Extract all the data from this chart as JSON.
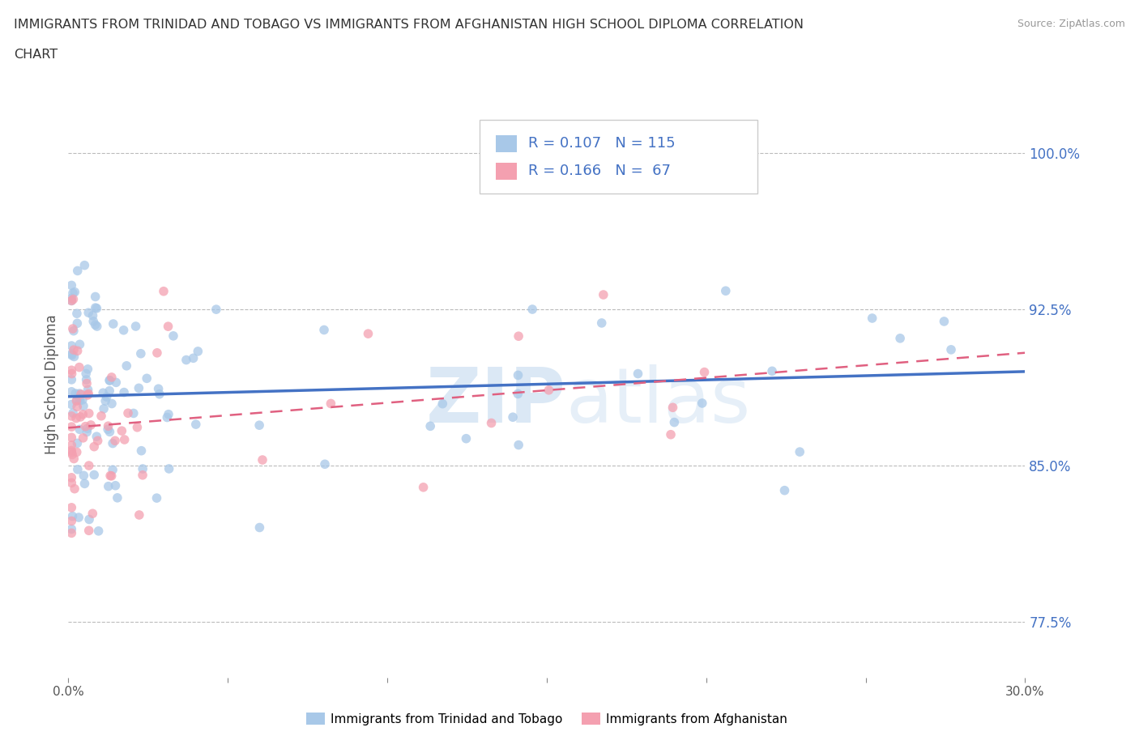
{
  "title_line1": "IMMIGRANTS FROM TRINIDAD AND TOBAGO VS IMMIGRANTS FROM AFGHANISTAN HIGH SCHOOL DIPLOMA CORRELATION",
  "title_line2": "CHART",
  "source": "Source: ZipAtlas.com",
  "ylabel": "High School Diploma",
  "r_tt": 0.107,
  "n_tt": 115,
  "r_af": 0.166,
  "n_af": 67,
  "color_tt": "#a8c8e8",
  "color_af": "#f4a0b0",
  "color_trendline_tt": "#4472c4",
  "color_trendline_af": "#e06080",
  "xmin": 0.0,
  "xmax": 0.3,
  "ymin": 0.748,
  "ymax": 1.03,
  "yticks": [
    0.775,
    0.85,
    0.925,
    1.0
  ],
  "ytick_labels": [
    "77.5%",
    "85.0%",
    "92.5%",
    "100.0%"
  ],
  "xticks": [
    0.0,
    0.05,
    0.1,
    0.15,
    0.2,
    0.25,
    0.3
  ],
  "xtick_labels": [
    "0.0%",
    "",
    "",
    "",
    "",
    "",
    "30.0%"
  ],
  "watermark_zip": "ZIP",
  "watermark_atlas": "atlas",
  "legend_label_tt": "Immigrants from Trinidad and Tobago",
  "legend_label_af": "Immigrants from Afghanistan",
  "tt_intercept": 0.883,
  "tt_slope": 0.04,
  "af_intercept": 0.868,
  "af_slope": 0.12,
  "seed": 12345
}
